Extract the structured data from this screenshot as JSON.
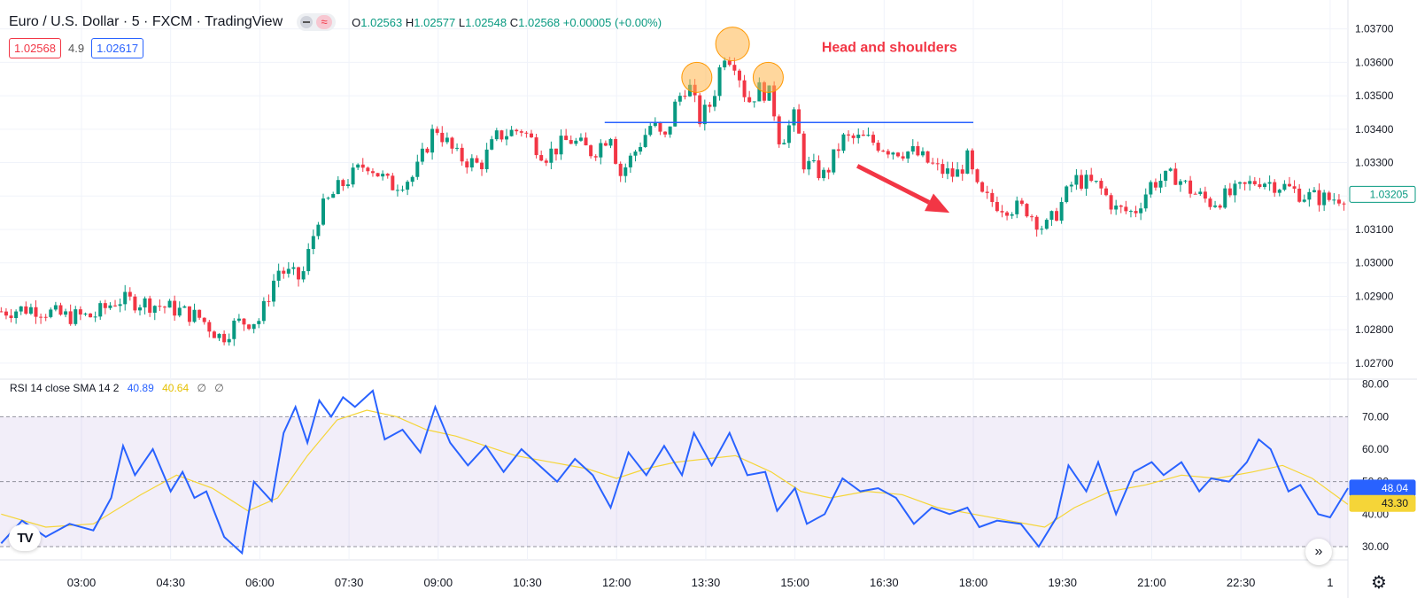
{
  "header": {
    "title": "Euro / U.S. Dollar · 5 · FXCM · TradingView",
    "ohlc": {
      "o_label": "O",
      "o": "1.02563",
      "h_label": "H",
      "h": "1.02577",
      "l_label": "L",
      "l": "1.02548",
      "c_label": "C",
      "c": "1.02568",
      "change": "+0.00005 (+0.00%)"
    },
    "sell_price": "1.02568",
    "spread": "4.9",
    "buy_price": "1.02617",
    "dash_icon": "minus-icon",
    "wave_icon": "approx-icon",
    "wave_glyph": "≈"
  },
  "annotation": {
    "text": "Head and shoulders"
  },
  "rsi_legend": {
    "label": "RSI 14 close SMA 14 2",
    "rsi_value": "40.89",
    "sma_value": "40.64",
    "na1": "∅",
    "na2": "∅"
  },
  "price_badge": "1.03205",
  "rsi_badge": "48.04",
  "sma_badge": "43.30",
  "colors": {
    "up": "#089981",
    "down": "#f23645",
    "rsi": "#2962ff",
    "sma": "#f5d538",
    "neckline": "#2962ff",
    "arrow": "#f23645",
    "annotation": "#f23645",
    "band": "#7e57c2"
  },
  "logo_text": "TV",
  "ff_glyph": "»",
  "gear_glyph": "⚙",
  "chart_data": [
    {
      "type": "candlestick",
      "title": "Euro / U.S. Dollar · 5 · FXCM",
      "x_ticks": [
        "03:00",
        "04:30",
        "06:00",
        "07:30",
        "09:00",
        "10:30",
        "12:00",
        "13:30",
        "15:00",
        "16:30",
        "18:00",
        "19:30",
        "21:00",
        "22:30",
        "1"
      ],
      "x_tick_hours": [
        3,
        4.5,
        6,
        7.5,
        9,
        10.5,
        12,
        13.5,
        15,
        16.5,
        18,
        19.5,
        21,
        22.5,
        24
      ],
      "x_range_hours": [
        1.63,
        24.3
      ],
      "y_ticks": [
        1.037,
        1.036,
        1.035,
        1.034,
        1.033,
        1.032,
        1.031,
        1.03,
        1.029,
        1.028,
        1.027
      ],
      "y_tick_labels": [
        "1.03700",
        "1.03600",
        "1.03500",
        "1.03400",
        "1.03300",
        "1.03200",
        "1.03100",
        "1.03000",
        "1.02900",
        "1.02800",
        "1.02700"
      ],
      "ylim": [
        1.0266,
        1.0376
      ],
      "close_path": [
        {
          "t": 1.65,
          "v": 1.02855
        },
        {
          "t": 2.2,
          "v": 1.02865
        },
        {
          "t": 2.7,
          "v": 1.0284
        },
        {
          "t": 3.2,
          "v": 1.0284
        },
        {
          "t": 3.6,
          "v": 1.0289
        },
        {
          "t": 4.1,
          "v": 1.0288
        },
        {
          "t": 4.6,
          "v": 1.0286
        },
        {
          "t": 5.0,
          "v": 1.02835
        },
        {
          "t": 5.35,
          "v": 1.02775
        },
        {
          "t": 5.6,
          "v": 1.0282
        },
        {
          "t": 6.0,
          "v": 1.0283
        },
        {
          "t": 6.3,
          "v": 1.0298
        },
        {
          "t": 6.7,
          "v": 1.0295
        },
        {
          "t": 7.0,
          "v": 1.0315
        },
        {
          "t": 7.3,
          "v": 1.0322
        },
        {
          "t": 7.8,
          "v": 1.033
        },
        {
          "t": 8.2,
          "v": 1.0323
        },
        {
          "t": 8.6,
          "v": 1.0326
        },
        {
          "t": 8.95,
          "v": 1.0341
        },
        {
          "t": 9.3,
          "v": 1.0332
        },
        {
          "t": 9.7,
          "v": 1.0329
        },
        {
          "t": 10.0,
          "v": 1.0338
        },
        {
          "t": 10.4,
          "v": 1.034
        },
        {
          "t": 10.8,
          "v": 1.0332
        },
        {
          "t": 11.2,
          "v": 1.0337
        },
        {
          "t": 11.6,
          "v": 1.0333
        },
        {
          "t": 11.9,
          "v": 1.0339
        },
        {
          "t": 12.05,
          "v": 1.0326
        },
        {
          "t": 12.3,
          "v": 1.0333
        },
        {
          "t": 12.6,
          "v": 1.0342
        },
        {
          "t": 12.8,
          "v": 1.0336
        },
        {
          "t": 13.0,
          "v": 1.0348
        },
        {
          "t": 13.2,
          "v": 1.0354
        },
        {
          "t": 13.4,
          "v": 1.0343
        },
        {
          "t": 13.6,
          "v": 1.0348
        },
        {
          "t": 13.8,
          "v": 1.0363
        },
        {
          "t": 14.0,
          "v": 1.036
        },
        {
          "t": 14.2,
          "v": 1.0348
        },
        {
          "t": 14.4,
          "v": 1.0352
        },
        {
          "t": 14.6,
          "v": 1.035
        },
        {
          "t": 14.75,
          "v": 1.0336
        },
        {
          "t": 15.0,
          "v": 1.0344
        },
        {
          "t": 15.15,
          "v": 1.033
        },
        {
          "t": 15.5,
          "v": 1.0326
        },
        {
          "t": 15.8,
          "v": 1.0337
        },
        {
          "t": 16.2,
          "v": 1.0337
        },
        {
          "t": 16.6,
          "v": 1.0334
        },
        {
          "t": 17.0,
          "v": 1.0333
        },
        {
          "t": 17.4,
          "v": 1.0328
        },
        {
          "t": 17.7,
          "v": 1.0326
        },
        {
          "t": 17.9,
          "v": 1.0331
        },
        {
          "t": 18.1,
          "v": 1.032
        },
        {
          "t": 18.5,
          "v": 1.0317
        },
        {
          "t": 18.9,
          "v": 1.0316
        },
        {
          "t": 19.2,
          "v": 1.031
        },
        {
          "t": 19.4,
          "v": 1.0315
        },
        {
          "t": 19.7,
          "v": 1.0325
        },
        {
          "t": 20.1,
          "v": 1.0323
        },
        {
          "t": 20.4,
          "v": 1.0316
        },
        {
          "t": 20.7,
          "v": 1.0315
        },
        {
          "t": 21.0,
          "v": 1.0324
        },
        {
          "t": 21.4,
          "v": 1.0326
        },
        {
          "t": 21.7,
          "v": 1.0321
        },
        {
          "t": 22.0,
          "v": 1.0318
        },
        {
          "t": 22.4,
          "v": 1.0321
        },
        {
          "t": 22.8,
          "v": 1.0325
        },
        {
          "t": 23.2,
          "v": 1.0323
        },
        {
          "t": 23.6,
          "v": 1.032
        },
        {
          "t": 24.0,
          "v": 1.0319
        },
        {
          "t": 24.3,
          "v": 1.03205
        }
      ],
      "neckline": {
        "t1": 11.8,
        "t2": 18.0,
        "v": 1.0342
      },
      "pattern_markers": [
        {
          "t": 13.35,
          "v": 1.03555
        },
        {
          "t": 13.95,
          "v": 1.03655
        },
        {
          "t": 14.55,
          "v": 1.03555
        }
      ],
      "trend_arrow": {
        "t1": 16.05,
        "t2": 17.6,
        "v1": 1.0329,
        "v2": 1.0315
      }
    },
    {
      "type": "line",
      "title": "RSI 14 close SMA 14 2",
      "y_ticks": [
        80,
        70,
        60,
        50,
        40,
        30
      ],
      "y_tick_labels": [
        "80.00",
        "70.00",
        "60.00",
        "50.00",
        "40.00",
        "30.00"
      ],
      "ylim": [
        27,
        81
      ],
      "band": [
        30,
        70
      ],
      "midline": 50,
      "series": [
        {
          "name": "RSI",
          "points": [
            {
              "t": 1.65,
              "v": 31
            },
            {
              "t": 2.0,
              "v": 38
            },
            {
              "t": 2.4,
              "v": 33
            },
            {
              "t": 2.8,
              "v": 37
            },
            {
              "t": 3.2,
              "v": 35
            },
            {
              "t": 3.5,
              "v": 45
            },
            {
              "t": 3.7,
              "v": 61
            },
            {
              "t": 3.9,
              "v": 52
            },
            {
              "t": 4.2,
              "v": 60
            },
            {
              "t": 4.5,
              "v": 47
            },
            {
              "t": 4.7,
              "v": 53
            },
            {
              "t": 4.9,
              "v": 45
            },
            {
              "t": 5.1,
              "v": 47
            },
            {
              "t": 5.4,
              "v": 33
            },
            {
              "t": 5.7,
              "v": 28
            },
            {
              "t": 5.9,
              "v": 50
            },
            {
              "t": 6.0,
              "v": 48
            },
            {
              "t": 6.2,
              "v": 44
            },
            {
              "t": 6.4,
              "v": 65
            },
            {
              "t": 6.6,
              "v": 73
            },
            {
              "t": 6.8,
              "v": 62
            },
            {
              "t": 7.0,
              "v": 75
            },
            {
              "t": 7.2,
              "v": 70
            },
            {
              "t": 7.4,
              "v": 76
            },
            {
              "t": 7.6,
              "v": 73
            },
            {
              "t": 7.9,
              "v": 78
            },
            {
              "t": 8.1,
              "v": 63
            },
            {
              "t": 8.4,
              "v": 66
            },
            {
              "t": 8.7,
              "v": 59
            },
            {
              "t": 8.95,
              "v": 73
            },
            {
              "t": 9.2,
              "v": 62
            },
            {
              "t": 9.5,
              "v": 55
            },
            {
              "t": 9.8,
              "v": 61
            },
            {
              "t": 10.1,
              "v": 53
            },
            {
              "t": 10.4,
              "v": 60
            },
            {
              "t": 10.7,
              "v": 55
            },
            {
              "t": 11.0,
              "v": 50
            },
            {
              "t": 11.3,
              "v": 57
            },
            {
              "t": 11.6,
              "v": 52
            },
            {
              "t": 11.9,
              "v": 42
            },
            {
              "t": 12.2,
              "v": 59
            },
            {
              "t": 12.5,
              "v": 52
            },
            {
              "t": 12.8,
              "v": 61
            },
            {
              "t": 13.1,
              "v": 52
            },
            {
              "t": 13.3,
              "v": 65
            },
            {
              "t": 13.6,
              "v": 55
            },
            {
              "t": 13.9,
              "v": 65
            },
            {
              "t": 14.2,
              "v": 52
            },
            {
              "t": 14.5,
              "v": 53
            },
            {
              "t": 14.7,
              "v": 41
            },
            {
              "t": 15.0,
              "v": 48
            },
            {
              "t": 15.2,
              "v": 37
            },
            {
              "t": 15.5,
              "v": 40
            },
            {
              "t": 15.8,
              "v": 51
            },
            {
              "t": 16.1,
              "v": 47
            },
            {
              "t": 16.4,
              "v": 48
            },
            {
              "t": 16.7,
              "v": 45
            },
            {
              "t": 17.0,
              "v": 37
            },
            {
              "t": 17.3,
              "v": 42
            },
            {
              "t": 17.6,
              "v": 40
            },
            {
              "t": 17.9,
              "v": 42
            },
            {
              "t": 18.1,
              "v": 36
            },
            {
              "t": 18.4,
              "v": 38
            },
            {
              "t": 18.8,
              "v": 37
            },
            {
              "t": 19.1,
              "v": 30
            },
            {
              "t": 19.4,
              "v": 39
            },
            {
              "t": 19.6,
              "v": 55
            },
            {
              "t": 19.9,
              "v": 47
            },
            {
              "t": 20.1,
              "v": 56
            },
            {
              "t": 20.4,
              "v": 40
            },
            {
              "t": 20.7,
              "v": 53
            },
            {
              "t": 21.0,
              "v": 56
            },
            {
              "t": 21.2,
              "v": 52
            },
            {
              "t": 21.5,
              "v": 56
            },
            {
              "t": 21.8,
              "v": 47
            },
            {
              "t": 22.0,
              "v": 51
            },
            {
              "t": 22.3,
              "v": 50
            },
            {
              "t": 22.6,
              "v": 56
            },
            {
              "t": 22.8,
              "v": 63
            },
            {
              "t": 23.0,
              "v": 60
            },
            {
              "t": 23.3,
              "v": 47
            },
            {
              "t": 23.5,
              "v": 49
            },
            {
              "t": 23.8,
              "v": 40
            },
            {
              "t": 24.0,
              "v": 39
            },
            {
              "t": 24.3,
              "v": 48
            }
          ]
        },
        {
          "name": "SMA",
          "points": [
            {
              "t": 1.65,
              "v": 40
            },
            {
              "t": 2.4,
              "v": 36
            },
            {
              "t": 3.2,
              "v": 37
            },
            {
              "t": 4.0,
              "v": 46
            },
            {
              "t": 4.6,
              "v": 52
            },
            {
              "t": 5.2,
              "v": 48
            },
            {
              "t": 5.8,
              "v": 41
            },
            {
              "t": 6.3,
              "v": 45
            },
            {
              "t": 6.8,
              "v": 58
            },
            {
              "t": 7.3,
              "v": 69
            },
            {
              "t": 7.8,
              "v": 72
            },
            {
              "t": 8.3,
              "v": 70
            },
            {
              "t": 8.8,
              "v": 66
            },
            {
              "t": 9.3,
              "v": 64
            },
            {
              "t": 9.8,
              "v": 61
            },
            {
              "t": 10.3,
              "v": 58
            },
            {
              "t": 10.9,
              "v": 56
            },
            {
              "t": 11.5,
              "v": 54
            },
            {
              "t": 12.0,
              "v": 51
            },
            {
              "t": 12.5,
              "v": 54
            },
            {
              "t": 13.0,
              "v": 56
            },
            {
              "t": 13.5,
              "v": 57
            },
            {
              "t": 14.0,
              "v": 58
            },
            {
              "t": 14.6,
              "v": 53
            },
            {
              "t": 15.1,
              "v": 47
            },
            {
              "t": 15.6,
              "v": 45
            },
            {
              "t": 16.2,
              "v": 47
            },
            {
              "t": 16.8,
              "v": 46
            },
            {
              "t": 17.4,
              "v": 42
            },
            {
              "t": 18.0,
              "v": 40
            },
            {
              "t": 18.6,
              "v": 38
            },
            {
              "t": 19.2,
              "v": 36
            },
            {
              "t": 19.7,
              "v": 42
            },
            {
              "t": 20.3,
              "v": 47
            },
            {
              "t": 20.9,
              "v": 49
            },
            {
              "t": 21.5,
              "v": 52
            },
            {
              "t": 22.1,
              "v": 51
            },
            {
              "t": 22.7,
              "v": 53
            },
            {
              "t": 23.2,
              "v": 55
            },
            {
              "t": 23.7,
              "v": 51
            },
            {
              "t": 24.3,
              "v": 43
            }
          ]
        }
      ]
    }
  ]
}
